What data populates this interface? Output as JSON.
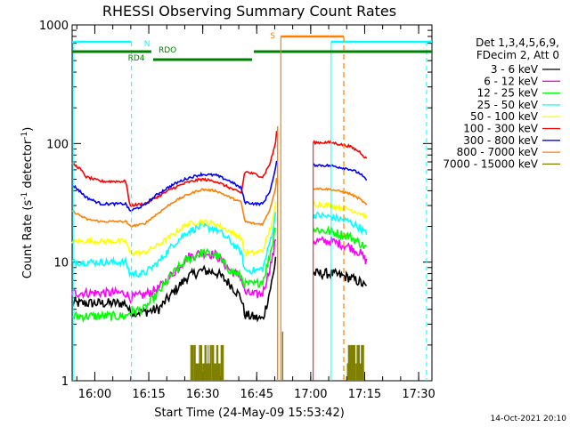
{
  "chart_data": {
    "type": "line",
    "title": "RHESSI Observing Summary Count Rates",
    "xlabel": "Start Time (24-May-09 15:53:42)",
    "ylabel_parts": [
      "Count Rate (s",
      "-1",
      " detector",
      "-1",
      ")"
    ],
    "yscale": "log",
    "ylim": [
      1,
      1000
    ],
    "xlim_minutes": [
      0,
      100
    ],
    "x_ticks": [
      {
        "label": "16:00",
        "t": 6.3
      },
      {
        "label": "16:15",
        "t": 21.3
      },
      {
        "label": "16:30",
        "t": 36.3
      },
      {
        "label": "16:45",
        "t": 51.3
      },
      {
        "label": "17:00",
        "t": 66.3
      },
      {
        "label": "17:15",
        "t": 81.3
      },
      {
        "label": "17:30",
        "t": 96.3
      }
    ],
    "y_ticks": [
      {
        "label": "1",
        "v": 1
      },
      {
        "label": "10",
        "v": 10
      },
      {
        "label": "100",
        "v": 100
      },
      {
        "label": "1000",
        "v": 1000
      }
    ],
    "legend": {
      "header": [
        "Det 1,3,4,5,6,9,",
        "FDecim 2, Att 0"
      ],
      "placement": "right"
    },
    "series": [
      {
        "name": "3 - 6 keV",
        "color": "#000000",
        "noise": 0.1,
        "pts": [
          [
            0,
            4.5
          ],
          [
            15,
            4.5
          ],
          [
            16,
            3.8
          ],
          [
            20,
            3.8
          ],
          [
            24,
            4
          ],
          [
            28,
            5.5
          ],
          [
            32,
            7.5
          ],
          [
            36,
            8.5
          ],
          [
            40,
            8.2
          ],
          [
            44,
            6.5
          ],
          [
            47,
            5
          ],
          [
            48,
            3.6
          ],
          [
            51,
            3.4
          ],
          [
            53,
            3.3
          ],
          [
            54.5,
            5
          ],
          [
            56,
            8
          ],
          [
            56.8,
            13
          ]
        ],
        "pts2": [
          [
            67,
            8
          ],
          [
            72,
            8
          ],
          [
            77,
            7.4
          ],
          [
            80,
            6.8
          ],
          [
            82,
            6
          ]
        ]
      },
      {
        "name": "6 - 12 keV",
        "color": "#ff00ff",
        "noise": 0.09,
        "pts": [
          [
            0,
            5.5
          ],
          [
            15,
            5.5
          ],
          [
            16,
            5
          ],
          [
            20,
            5.3
          ],
          [
            24,
            6
          ],
          [
            28,
            8
          ],
          [
            32,
            11
          ],
          [
            36,
            12
          ],
          [
            40,
            11.5
          ],
          [
            44,
            8.5
          ],
          [
            47,
            7.5
          ],
          [
            48,
            5.5
          ],
          [
            51,
            5.3
          ],
          [
            53,
            5.5
          ],
          [
            54.5,
            8
          ],
          [
            56,
            12
          ],
          [
            56.8,
            18
          ]
        ],
        "pts2": [
          [
            67,
            15
          ],
          [
            72,
            15
          ],
          [
            77,
            13.5
          ],
          [
            80,
            12
          ],
          [
            82,
            10
          ]
        ]
      },
      {
        "name": "12 - 25 keV",
        "color": "#00ff00",
        "noise": 0.09,
        "pts": [
          [
            0,
            3.5
          ],
          [
            15,
            3.5
          ],
          [
            16,
            3.8
          ],
          [
            20,
            4
          ],
          [
            24,
            5.5
          ],
          [
            28,
            8
          ],
          [
            32,
            10.5
          ],
          [
            36,
            12
          ],
          [
            40,
            11.5
          ],
          [
            44,
            8.5
          ],
          [
            47,
            7.5
          ],
          [
            48,
            6.5
          ],
          [
            51,
            6.5
          ],
          [
            53,
            7
          ],
          [
            54.5,
            10
          ],
          [
            56,
            16
          ],
          [
            56.8,
            24
          ]
        ],
        "pts2": [
          [
            67,
            19
          ],
          [
            72,
            18
          ],
          [
            77,
            16.5
          ],
          [
            80,
            14.5
          ],
          [
            82,
            13
          ]
        ]
      },
      {
        "name": "25 - 50 keV",
        "color": "#00ffff",
        "noise": 0.07,
        "pts": [
          [
            0,
            10
          ],
          [
            15,
            10
          ],
          [
            16,
            8
          ],
          [
            20,
            8
          ],
          [
            24,
            10
          ],
          [
            28,
            14
          ],
          [
            32,
            18
          ],
          [
            36,
            20
          ],
          [
            40,
            19
          ],
          [
            44,
            15
          ],
          [
            47,
            12
          ],
          [
            48,
            8.5
          ],
          [
            51,
            8.5
          ],
          [
            53,
            8.8
          ],
          [
            54.5,
            13
          ],
          [
            56,
            20
          ],
          [
            56.8,
            30
          ]
        ],
        "pts2": [
          [
            67,
            25
          ],
          [
            72,
            24
          ],
          [
            77,
            22
          ],
          [
            80,
            19.5
          ],
          [
            82,
            17
          ]
        ]
      },
      {
        "name": "50 - 100 keV",
        "color": "#ffff00",
        "noise": 0.05,
        "pts": [
          [
            0,
            15
          ],
          [
            15,
            15
          ],
          [
            16,
            12
          ],
          [
            20,
            12
          ],
          [
            24,
            14
          ],
          [
            28,
            17
          ],
          [
            32,
            21
          ],
          [
            36,
            22
          ],
          [
            40,
            21
          ],
          [
            44,
            18
          ],
          [
            47,
            16
          ],
          [
            48,
            12
          ],
          [
            51,
            12
          ],
          [
            53,
            12.5
          ],
          [
            54.5,
            17
          ],
          [
            56,
            24
          ],
          [
            56.8,
            35
          ]
        ],
        "pts2": [
          [
            67,
            31
          ],
          [
            72,
            30
          ],
          [
            77,
            28
          ],
          [
            80,
            26
          ],
          [
            82,
            24
          ]
        ]
      },
      {
        "name": "100 - 300 keV",
        "color": "#ff0000",
        "noise": 0.025,
        "pts": [
          [
            0,
            68
          ],
          [
            2,
            62
          ],
          [
            4,
            52
          ],
          [
            8,
            48
          ],
          [
            15,
            48
          ],
          [
            16,
            30
          ],
          [
            20,
            31
          ],
          [
            24,
            36
          ],
          [
            28,
            42
          ],
          [
            32,
            47
          ],
          [
            36,
            50
          ],
          [
            40,
            48
          ],
          [
            44,
            42
          ],
          [
            47,
            38
          ],
          [
            48,
            58
          ],
          [
            51,
            55
          ],
          [
            53,
            52
          ],
          [
            55,
            68
          ],
          [
            56.5,
            100
          ],
          [
            57,
            140
          ]
        ],
        "pts2": [
          [
            67,
            102
          ],
          [
            72,
            102
          ],
          [
            77,
            95
          ],
          [
            80,
            85
          ],
          [
            82,
            73
          ]
        ]
      },
      {
        "name": "300 - 800 keV",
        "color": "#0000ff",
        "noise": 0.025,
        "pts": [
          [
            0,
            45
          ],
          [
            2,
            40
          ],
          [
            4,
            35
          ],
          [
            8,
            31
          ],
          [
            15,
            31
          ],
          [
            16,
            27
          ],
          [
            20,
            30
          ],
          [
            24,
            38
          ],
          [
            28,
            45
          ],
          [
            32,
            51
          ],
          [
            36,
            55
          ],
          [
            40,
            54
          ],
          [
            44,
            48
          ],
          [
            47,
            42
          ],
          [
            48,
            32
          ],
          [
            51,
            31
          ],
          [
            53,
            31
          ],
          [
            55,
            40
          ],
          [
            56.5,
            60
          ],
          [
            57,
            80
          ]
        ],
        "pts2": [
          [
            67,
            66
          ],
          [
            72,
            65
          ],
          [
            77,
            61
          ],
          [
            80,
            56
          ],
          [
            82,
            48
          ]
        ]
      },
      {
        "name": "800 - 7000 keV",
        "color": "#ff8000",
        "noise": 0.02,
        "pts": [
          [
            0,
            27
          ],
          [
            4,
            23
          ],
          [
            8,
            22
          ],
          [
            15,
            22
          ],
          [
            16,
            20
          ],
          [
            20,
            21
          ],
          [
            24,
            26
          ],
          [
            28,
            32
          ],
          [
            32,
            37
          ],
          [
            36,
            41
          ],
          [
            40,
            40
          ],
          [
            44,
            35
          ],
          [
            47,
            32
          ],
          [
            48,
            22
          ],
          [
            51,
            21
          ],
          [
            53,
            21
          ],
          [
            55,
            28
          ],
          [
            56.5,
            42
          ],
          [
            57,
            55
          ]
        ],
        "pts2": [
          [
            67,
            42
          ],
          [
            72,
            41
          ],
          [
            77,
            38
          ],
          [
            80,
            34
          ],
          [
            82,
            30
          ]
        ]
      }
    ],
    "series_extra": {
      "name": "7000 - 15000 keV",
      "color": "#808000",
      "bursts": [
        [
          33,
          42
        ],
        [
          76.5,
          81
        ]
      ],
      "min_t": 58,
      "max_t": 60
    },
    "status_bars": {
      "N": {
        "label": "N",
        "color": "#00ffff"
      },
      "RDO": {
        "label": "RDO",
        "color": "#008000"
      },
      "RD4": {
        "label": "RD4",
        "color": "#008000"
      },
      "S": {
        "label": "S",
        "color": "#ff8000"
      }
    },
    "timestamp": "14-Oct-2021 20:10"
  }
}
